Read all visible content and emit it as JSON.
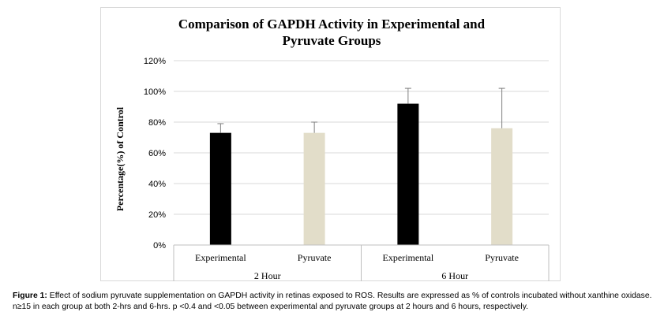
{
  "chart_data": {
    "type": "bar",
    "title_lines": [
      "Comparison  of GAPDH Activity in Experimental and",
      "Pyruvate Groups"
    ],
    "ylabel": "Percentage(%) of Control",
    "xlabel": "",
    "ylim": [
      0,
      120
    ],
    "y_ticks": [
      "0%",
      "20%",
      "40%",
      "60%",
      "80%",
      "100%",
      "120%"
    ],
    "y_tick_values": [
      0,
      20,
      40,
      60,
      80,
      100,
      120
    ],
    "grid": true,
    "groups": [
      "2 Hour",
      "6 Hour"
    ],
    "categories": [
      "Experimental",
      "Pyruvate",
      "Experimental",
      "Pyruvate"
    ],
    "category_group": [
      0,
      0,
      1,
      1
    ],
    "values": [
      73,
      73,
      92,
      76
    ],
    "error_upper": [
      6,
      7,
      10,
      26
    ],
    "bar_colors": [
      "#000000",
      "#e2ddc9",
      "#000000",
      "#e2ddc9"
    ]
  },
  "caption": {
    "label": "Figure 1:",
    "text": " Effect of sodium pyruvate supplementation on GAPDH activity in retinas exposed to ROS. Results are expressed as % of controls incubated without xanthine oxidase. n≥15 in each group at both 2-hrs and 6-hrs. p <0.4 and <0.05 between experimental and pyruvate groups at 2 hours and 6 hours, respectively."
  }
}
